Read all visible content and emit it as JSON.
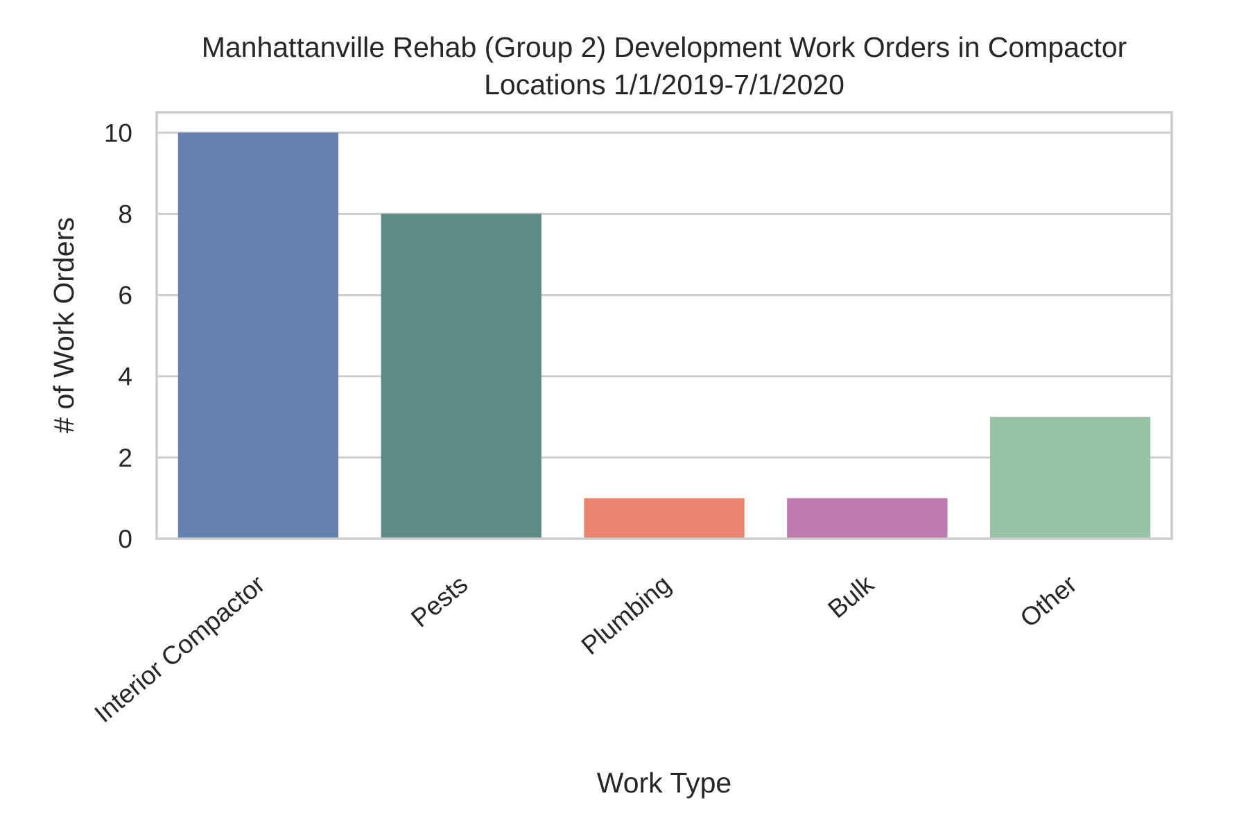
{
  "chart_data": {
    "type": "bar",
    "title_lines": [
      "Manhattanville Rehab (Group 2) Development Work Orders in Compactor",
      "Locations 1/1/2019-7/1/2020"
    ],
    "xlabel": "Work Type",
    "ylabel": "# of Work Orders",
    "categories": [
      "Interior Compactor",
      "Pests",
      "Plumbing",
      "Bulk",
      "Other"
    ],
    "values": [
      10,
      8,
      1,
      1,
      3
    ],
    "colors": [
      "#6581b0",
      "#5e8a87",
      "#e8846f",
      "#bd7bb0",
      "#97c2a4"
    ],
    "ylim": [
      0,
      10.5
    ],
    "yticks": [
      0,
      2,
      4,
      6,
      8,
      10
    ],
    "grid": true,
    "grid_color": "#cccccc",
    "spine_color": "#cccccc",
    "text_color": "#262626",
    "legend": "none"
  }
}
